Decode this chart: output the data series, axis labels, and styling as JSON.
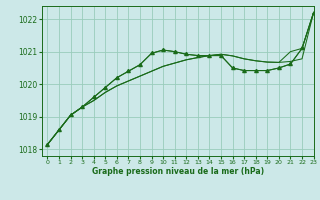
{
  "background_color": "#cce8e8",
  "grid_color": "#99ccbb",
  "line_color": "#1a6b1a",
  "xlabel": "Graphe pression niveau de la mer (hPa)",
  "ylim": [
    1017.8,
    1022.4
  ],
  "xlim": [
    -0.5,
    23
  ],
  "yticks": [
    1018,
    1019,
    1020,
    1021,
    1022
  ],
  "xticks": [
    0,
    1,
    2,
    3,
    4,
    5,
    6,
    7,
    8,
    9,
    10,
    11,
    12,
    13,
    14,
    15,
    16,
    17,
    18,
    19,
    20,
    21,
    22,
    23
  ],
  "series": {
    "line_smooth1": [
      1018.15,
      1018.6,
      1019.05,
      1019.3,
      1019.5,
      1019.75,
      1019.95,
      1020.1,
      1020.25,
      1020.4,
      1020.55,
      1020.65,
      1020.75,
      1020.82,
      1020.88,
      1020.92,
      1020.87,
      1020.78,
      1020.72,
      1020.68,
      1020.67,
      1020.7,
      1020.78,
      1022.2
    ],
    "line_smooth2": [
      1018.15,
      1018.6,
      1019.05,
      1019.3,
      1019.5,
      1019.75,
      1019.95,
      1020.1,
      1020.25,
      1020.4,
      1020.55,
      1020.65,
      1020.75,
      1020.82,
      1020.88,
      1020.92,
      1020.87,
      1020.78,
      1020.72,
      1020.68,
      1020.67,
      1021.0,
      1021.1,
      1022.2
    ],
    "line_peaked": [
      1018.15,
      1018.6,
      1019.05,
      1019.3,
      1019.6,
      1019.9,
      1020.2,
      1020.4,
      1020.6,
      1020.95,
      1021.05,
      1021.0,
      1020.92,
      1020.88,
      1020.88,
      1020.88,
      1020.5,
      1020.42,
      1020.42,
      1020.42,
      1020.5,
      1020.62,
      1021.1,
      1022.2
    ],
    "line_marked": [
      1018.15,
      1018.6,
      1019.05,
      1019.3,
      1019.6,
      1019.9,
      1020.2,
      1020.4,
      1020.6,
      1020.95,
      1021.05,
      1021.0,
      1020.92,
      1020.88,
      1020.88,
      1020.88,
      1020.5,
      1020.42,
      1020.42,
      1020.42,
      1020.5,
      1020.62,
      1021.1,
      1022.2
    ],
    "marked_indices": [
      5,
      7,
      9,
      11,
      13,
      14,
      15,
      16,
      17,
      18,
      19,
      20,
      21,
      22,
      23
    ]
  }
}
